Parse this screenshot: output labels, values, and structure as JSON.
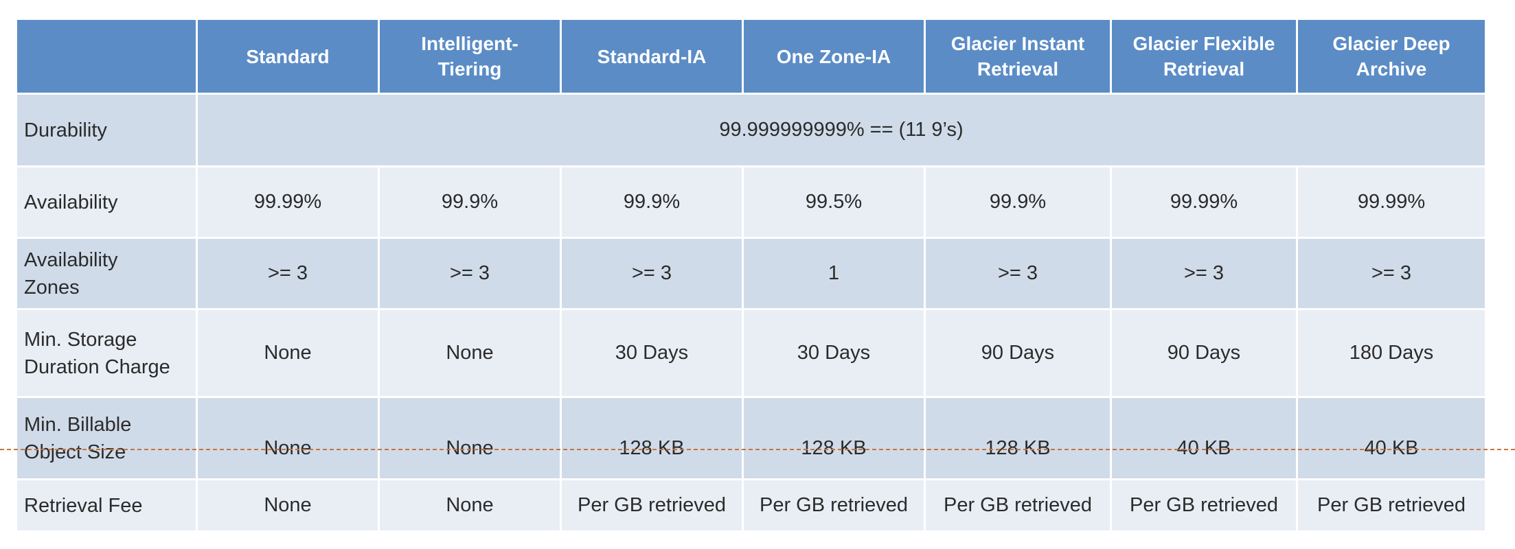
{
  "header": {
    "columns": [
      "Standard",
      "Intelligent-\nTiering",
      "Standard-IA",
      "One Zone-IA",
      "Glacier Instant\nRetrieval",
      "Glacier Flexible\nRetrieval",
      "Glacier Deep\nArchive"
    ]
  },
  "rows": {
    "durability": {
      "label": "Durability",
      "value": "99.999999999% == (11 9’s)"
    },
    "availability": {
      "label": "Availability",
      "values": [
        "99.99%",
        "99.9%",
        "99.9%",
        "99.5%",
        "99.9%",
        "99.99%",
        "99.99%"
      ]
    },
    "availability_zones": {
      "label": "Availability\nZones",
      "values": [
        ">= 3",
        ">= 3",
        ">= 3",
        "1",
        ">= 3",
        ">= 3",
        ">= 3"
      ]
    },
    "min_storage_duration": {
      "label": "Min. Storage\nDuration Charge",
      "values": [
        "None",
        "None",
        "30 Days",
        "30 Days",
        "90 Days",
        "90 Days",
        "180 Days"
      ]
    },
    "min_billable_size": {
      "label": "Min. Billable\nObject Size",
      "values": [
        "None",
        "None",
        "128 KB",
        "128 KB",
        "128 KB",
        "40 KB",
        "40 KB"
      ]
    },
    "retrieval_fee": {
      "label": "Retrieval Fee",
      "values": [
        "None",
        "None",
        "Per GB retrieved",
        "Per GB retrieved",
        "Per GB retrieved",
        "Per GB retrieved",
        "Per GB retrieved"
      ]
    }
  }
}
